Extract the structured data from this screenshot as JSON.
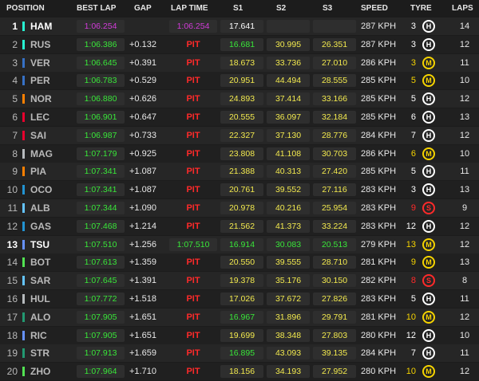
{
  "table": {
    "headers": [
      "POSITION",
      "BEST LAP",
      "GAP",
      "LAP TIME",
      "S1",
      "S2",
      "S3",
      "SPEED",
      "TYRE",
      "LAPS"
    ],
    "palette": {
      "purple": "#d13bd8",
      "green": "#39e639",
      "yellow": "#f2e94e",
      "white": "#ffffff",
      "red": "#ff2a2a",
      "H": "#ffffff",
      "M": "#f5d300",
      "S": "#ff2a2a"
    },
    "rows": [
      {
        "pos": 1,
        "driver": "HAM",
        "team_color": "#27f4d2",
        "highlight": true,
        "best_lap": "1:06.254",
        "best_color": "purple",
        "lap_time": "1:06.254",
        "lap_color": "purple",
        "sectors": [
          "17.641"
        ],
        "sector_colors": [
          "white"
        ],
        "speed": "287 KPH",
        "age": 3,
        "tyre": "H",
        "laps": 14
      },
      {
        "pos": 2,
        "driver": "RUS",
        "team_color": "#27f4d2",
        "best_lap": "1:06.386",
        "best_color": "green",
        "gap": "+0.132",
        "lap_time": "PIT",
        "lap_color": "red",
        "sectors": [
          "16.681",
          "30.995",
          "26.351"
        ],
        "sector_colors": [
          "green",
          "yellow",
          "yellow"
        ],
        "speed": "287 KPH",
        "age": 3,
        "tyre": "H",
        "laps": 12
      },
      {
        "pos": 3,
        "driver": "VER",
        "team_color": "#3671c6",
        "best_lap": "1:06.645",
        "best_color": "green",
        "gap": "+0.391",
        "lap_time": "PIT",
        "lap_color": "red",
        "sectors": [
          "18.673",
          "33.736",
          "27.010"
        ],
        "sector_colors": [
          "yellow",
          "yellow",
          "yellow"
        ],
        "speed": "286 KPH",
        "age": 3,
        "tyre": "M",
        "laps": 11
      },
      {
        "pos": 4,
        "driver": "PER",
        "team_color": "#3671c6",
        "best_lap": "1:06.783",
        "best_color": "green",
        "gap": "+0.529",
        "lap_time": "PIT",
        "lap_color": "red",
        "sectors": [
          "20.951",
          "44.494",
          "28.555"
        ],
        "sector_colors": [
          "yellow",
          "yellow",
          "yellow"
        ],
        "speed": "285 KPH",
        "age": 5,
        "tyre": "M",
        "laps": 10
      },
      {
        "pos": 5,
        "driver": "NOR",
        "team_color": "#ff8000",
        "best_lap": "1:06.880",
        "best_color": "green",
        "gap": "+0.626",
        "lap_time": "PIT",
        "lap_color": "red",
        "sectors": [
          "24.893",
          "37.414",
          "33.166"
        ],
        "sector_colors": [
          "yellow",
          "yellow",
          "yellow"
        ],
        "speed": "285 KPH",
        "age": 5,
        "tyre": "H",
        "laps": 12
      },
      {
        "pos": 6,
        "driver": "LEC",
        "team_color": "#e8002d",
        "best_lap": "1:06.901",
        "best_color": "green",
        "gap": "+0.647",
        "lap_time": "PIT",
        "lap_color": "red",
        "sectors": [
          "20.555",
          "36.097",
          "32.184"
        ],
        "sector_colors": [
          "yellow",
          "yellow",
          "yellow"
        ],
        "speed": "285 KPH",
        "age": 6,
        "tyre": "H",
        "laps": 13
      },
      {
        "pos": 7,
        "driver": "SAI",
        "team_color": "#e8002d",
        "best_lap": "1:06.987",
        "best_color": "green",
        "gap": "+0.733",
        "lap_time": "PIT",
        "lap_color": "red",
        "sectors": [
          "22.327",
          "37.130",
          "28.776"
        ],
        "sector_colors": [
          "yellow",
          "yellow",
          "yellow"
        ],
        "speed": "284 KPH",
        "age": 7,
        "tyre": "H",
        "laps": 12
      },
      {
        "pos": 8,
        "driver": "MAG",
        "team_color": "#b6babd",
        "best_lap": "1:07.179",
        "best_color": "green",
        "gap": "+0.925",
        "lap_time": "PIT",
        "lap_color": "red",
        "sectors": [
          "23.808",
          "41.108",
          "30.703"
        ],
        "sector_colors": [
          "yellow",
          "yellow",
          "yellow"
        ],
        "speed": "286 KPH",
        "age": 6,
        "tyre": "M",
        "laps": 10
      },
      {
        "pos": 9,
        "driver": "PIA",
        "team_color": "#ff8000",
        "best_lap": "1:07.341",
        "best_color": "green",
        "gap": "+1.087",
        "lap_time": "PIT",
        "lap_color": "red",
        "sectors": [
          "21.388",
          "40.313",
          "27.420"
        ],
        "sector_colors": [
          "yellow",
          "yellow",
          "yellow"
        ],
        "speed": "285 KPH",
        "age": 5,
        "tyre": "H",
        "laps": 11
      },
      {
        "pos": 10,
        "driver": "OCO",
        "team_color": "#2293d1",
        "best_lap": "1:07.341",
        "best_color": "green",
        "gap": "+1.087",
        "lap_time": "PIT",
        "lap_color": "red",
        "sectors": [
          "20.761",
          "39.552",
          "27.116"
        ],
        "sector_colors": [
          "yellow",
          "yellow",
          "yellow"
        ],
        "speed": "283 KPH",
        "age": 3,
        "tyre": "H",
        "laps": 13
      },
      {
        "pos": 11,
        "driver": "ALB",
        "team_color": "#64c4ff",
        "best_lap": "1:07.344",
        "best_color": "green",
        "gap": "+1.090",
        "lap_time": "PIT",
        "lap_color": "red",
        "sectors": [
          "20.978",
          "40.216",
          "25.954"
        ],
        "sector_colors": [
          "yellow",
          "yellow",
          "yellow"
        ],
        "speed": "283 KPH",
        "age": 9,
        "tyre": "S",
        "laps": 9
      },
      {
        "pos": 12,
        "driver": "GAS",
        "team_color": "#2293d1",
        "best_lap": "1:07.468",
        "best_color": "green",
        "gap": "+1.214",
        "lap_time": "PIT",
        "lap_color": "red",
        "sectors": [
          "21.562",
          "41.373",
          "33.224"
        ],
        "sector_colors": [
          "yellow",
          "yellow",
          "yellow"
        ],
        "speed": "283 KPH",
        "age": 12,
        "tyre": "H",
        "laps": 12
      },
      {
        "pos": 13,
        "driver": "TSU",
        "team_color": "#6692ff",
        "highlight": true,
        "best_lap": "1:07.510",
        "best_color": "green",
        "gap": "+1.256",
        "lap_time": "1:07.510",
        "lap_color": "green",
        "sectors": [
          "16.914",
          "30.083",
          "20.513"
        ],
        "sector_colors": [
          "green",
          "green",
          "green"
        ],
        "speed": "279 KPH",
        "age": 13,
        "tyre": "M",
        "laps": 12
      },
      {
        "pos": 14,
        "driver": "BOT",
        "team_color": "#52e252",
        "best_lap": "1:07.613",
        "best_color": "green",
        "gap": "+1.359",
        "lap_time": "PIT",
        "lap_color": "red",
        "sectors": [
          "20.550",
          "39.555",
          "28.710"
        ],
        "sector_colors": [
          "yellow",
          "yellow",
          "yellow"
        ],
        "speed": "281 KPH",
        "age": 9,
        "tyre": "M",
        "laps": 13
      },
      {
        "pos": 15,
        "driver": "SAR",
        "team_color": "#64c4ff",
        "best_lap": "1:07.645",
        "best_color": "green",
        "gap": "+1.391",
        "lap_time": "PIT",
        "lap_color": "red",
        "sectors": [
          "19.378",
          "35.176",
          "30.150"
        ],
        "sector_colors": [
          "yellow",
          "yellow",
          "yellow"
        ],
        "speed": "282 KPH",
        "age": 8,
        "tyre": "S",
        "laps": 8
      },
      {
        "pos": 16,
        "driver": "HUL",
        "team_color": "#b6babd",
        "best_lap": "1:07.772",
        "best_color": "green",
        "gap": "+1.518",
        "lap_time": "PIT",
        "lap_color": "red",
        "sectors": [
          "17.026",
          "37.672",
          "27.826"
        ],
        "sector_colors": [
          "yellow",
          "yellow",
          "yellow"
        ],
        "speed": "283 KPH",
        "age": 5,
        "tyre": "H",
        "laps": 11
      },
      {
        "pos": 17,
        "driver": "ALO",
        "team_color": "#229971",
        "best_lap": "1:07.905",
        "best_color": "green",
        "gap": "+1.651",
        "lap_time": "PIT",
        "lap_color": "red",
        "sectors": [
          "16.967",
          "31.896",
          "29.791"
        ],
        "sector_colors": [
          "green",
          "yellow",
          "yellow"
        ],
        "speed": "281 KPH",
        "age": 10,
        "tyre": "M",
        "laps": 12
      },
      {
        "pos": 18,
        "driver": "RIC",
        "team_color": "#6692ff",
        "best_lap": "1:07.905",
        "best_color": "green",
        "gap": "+1.651",
        "lap_time": "PIT",
        "lap_color": "red",
        "sectors": [
          "19.699",
          "38.348",
          "27.803"
        ],
        "sector_colors": [
          "yellow",
          "yellow",
          "yellow"
        ],
        "speed": "280 KPH",
        "age": 12,
        "tyre": "H",
        "laps": 10
      },
      {
        "pos": 19,
        "driver": "STR",
        "team_color": "#229971",
        "best_lap": "1:07.913",
        "best_color": "green",
        "gap": "+1.659",
        "lap_time": "PIT",
        "lap_color": "red",
        "sectors": [
          "16.895",
          "43.093",
          "39.135"
        ],
        "sector_colors": [
          "green",
          "yellow",
          "yellow"
        ],
        "speed": "284 KPH",
        "age": 7,
        "tyre": "H",
        "laps": 11
      },
      {
        "pos": 20,
        "driver": "ZHO",
        "team_color": "#52e252",
        "best_lap": "1:07.964",
        "best_color": "green",
        "gap": "+1.710",
        "lap_time": "PIT",
        "lap_color": "red",
        "sectors": [
          "18.156",
          "34.193",
          "27.952"
        ],
        "sector_colors": [
          "yellow",
          "yellow",
          "yellow"
        ],
        "speed": "280 KPH",
        "age": 10,
        "tyre": "M",
        "laps": 12
      }
    ]
  }
}
